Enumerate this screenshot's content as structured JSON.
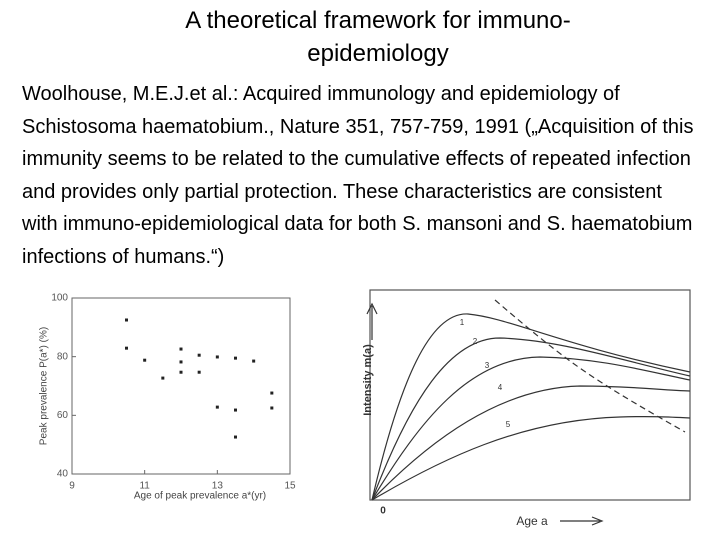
{
  "title": "A theoretical framework for immuno-epidemiology",
  "body": "Woolhouse, M.E.J.et al.: Acquired immunology and epidemiology of Schistosoma haematobium., Nature 351, 757-759, 1991 („Acquisition of this immunity seems to be related to the cumulative effects of repeated infection and provides only partial protection. These characteristics are consistent with immuno-epidemiological data for both S. mansoni and S. haematobium infections of humans.“)",
  "figure_left": {
    "type": "scatter",
    "xlabel": "Age of peak prevalence a*(yr)",
    "ylabel": "Peak prevalence P(a*) (%)",
    "xlim": [
      9,
      15
    ],
    "ylim": [
      40,
      100
    ],
    "xticks": [
      9,
      11,
      13,
      15
    ],
    "yticks": [
      40,
      60,
      80,
      100
    ],
    "color": "#222222",
    "points": [
      {
        "x": 10.5,
        "y": 92.5
      },
      {
        "x": 10.5,
        "y": 82.9
      },
      {
        "x": 11.0,
        "y": 78.8
      },
      {
        "x": 11.5,
        "y": 72.7
      },
      {
        "x": 12.0,
        "y": 82.6
      },
      {
        "x": 12.0,
        "y": 78.2
      },
      {
        "x": 12.0,
        "y": 74.7
      },
      {
        "x": 12.5,
        "y": 80.5
      },
      {
        "x": 12.5,
        "y": 74.7
      },
      {
        "x": 13.0,
        "y": 79.9
      },
      {
        "x": 13.0,
        "y": 62.8
      },
      {
        "x": 13.5,
        "y": 79.5
      },
      {
        "x": 13.5,
        "y": 61.8
      },
      {
        "x": 13.5,
        "y": 52.6
      },
      {
        "x": 14.0,
        "y": 78.5
      },
      {
        "x": 14.5,
        "y": 67.6
      },
      {
        "x": 14.5,
        "y": 62.5
      }
    ]
  },
  "figure_right": {
    "ylabel": "Intensity m(a)",
    "xlabel": "Age a",
    "origin": "0",
    "curve_labels": [
      "1",
      "2",
      "3",
      "4",
      "5"
    ]
  }
}
